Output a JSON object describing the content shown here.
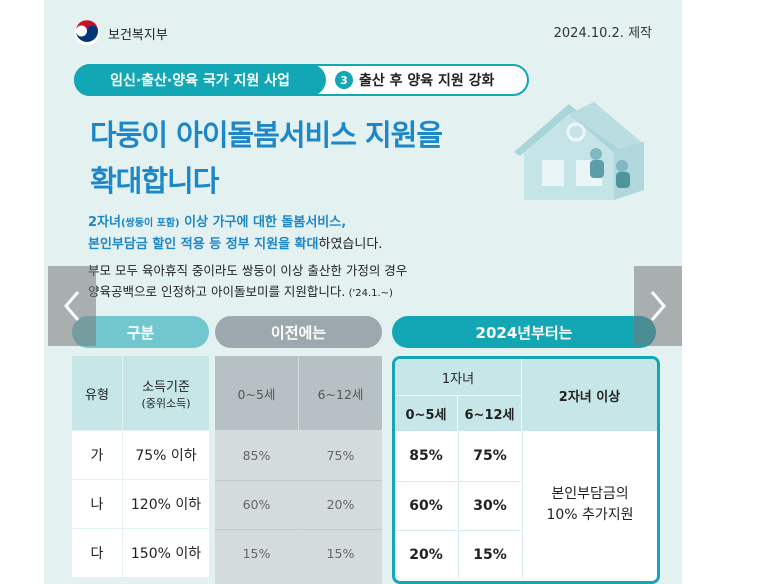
{
  "header": {
    "ministry": "보건복지부",
    "date": "2024.10.2. 제작"
  },
  "banner": {
    "program": "임신·출산·양육 국가 지원 사업",
    "number": "3",
    "topic": "출산 후 양육 지원 강화"
  },
  "headline": {
    "line1": "다둥이 아이돌봄서비스 지원을",
    "line2": "확대합니다"
  },
  "lead": {
    "part1": "2자녀",
    "part1_small": "(쌍둥이 포함)",
    "part2": " 이상 가구에 대한 돌봄서비스,",
    "part3": "본인부담금 할인 적용 등 정부 지원을 확대",
    "part4": "하였습니다."
  },
  "desc": {
    "line1": "부모 모두 육아휴직 중이라도 쌍둥이 이상 출산한 가정의 경우",
    "line2": "양육공백으로 인정하고 아이돌보미를 지원합니다.",
    "note": " ('24.1.~)"
  },
  "table": {
    "col_headers": {
      "category": "구분",
      "previous": "이전에는",
      "from2024": "2024년부터는"
    },
    "category_headers": {
      "type": "유형",
      "income": "소득기준",
      "income_sub": "(중위소득)"
    },
    "previous_headers": [
      "0~5세",
      "6~12세"
    ],
    "new_headers": {
      "one_child": "1자녀",
      "ages": [
        "0~5세",
        "6~12세"
      ],
      "two_plus": "2자녀 이상"
    },
    "rows": [
      {
        "type": "가",
        "income": "75% 이하",
        "prev": [
          "85%",
          "75%"
        ],
        "new": [
          "85%",
          "75%"
        ]
      },
      {
        "type": "나",
        "income": "120% 이하",
        "prev": [
          "60%",
          "20%"
        ],
        "new": [
          "60%",
          "30%"
        ]
      },
      {
        "type": "다",
        "income": "150% 이하",
        "prev": [
          "15%",
          "15%"
        ],
        "new": [
          "20%",
          "15%"
        ]
      }
    ],
    "two_plus_benefit": {
      "line1": "본인부담금의",
      "line2": "10% 추가지원"
    }
  },
  "colors": {
    "teal": "#13a7b5",
    "blue": "#1d87c8",
    "background": "#e4f1f1"
  },
  "nav": {
    "prev_icon": "chevron-left-icon",
    "next_icon": "chevron-right-icon"
  }
}
